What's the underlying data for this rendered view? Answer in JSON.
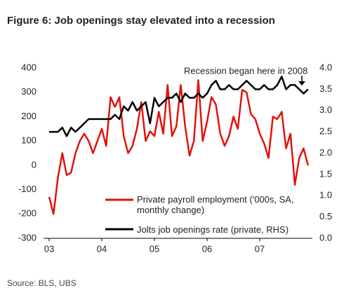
{
  "chart_data": {
    "type": "line",
    "title": "Figure 6: Job openings stay elevated into a recession",
    "source": "Source: BLS, UBS",
    "annotation": "Recession began here in 2008",
    "categories": [
      "03",
      null,
      null,
      null,
      null,
      null,
      null,
      null,
      null,
      null,
      null,
      null,
      "04",
      null,
      null,
      null,
      null,
      null,
      null,
      null,
      null,
      null,
      null,
      null,
      "05",
      null,
      null,
      null,
      null,
      null,
      null,
      null,
      null,
      null,
      null,
      null,
      "06",
      null,
      null,
      null,
      null,
      null,
      null,
      null,
      null,
      null,
      null,
      null,
      "07",
      null,
      null,
      null,
      null,
      null,
      null,
      null,
      null,
      null,
      null,
      null
    ],
    "series": [
      {
        "name": "Private payroll employment ('000s, SA, monthly change)",
        "color": "#e3120b",
        "axis": "y",
        "values": [
          -130,
          -200,
          -50,
          50,
          -40,
          -30,
          50,
          100,
          130,
          100,
          50,
          100,
          150,
          80,
          280,
          240,
          280,
          120,
          50,
          80,
          150,
          260,
          100,
          140,
          120,
          220,
          130,
          330,
          120,
          160,
          330,
          160,
          40,
          100,
          350,
          100,
          180,
          280,
          250,
          130,
          80,
          120,
          200,
          150,
          310,
          300,
          210,
          190,
          130,
          90,
          30,
          200,
          190,
          220,
          70,
          130,
          -80,
          30,
          70,
          0
        ]
      },
      {
        "name": "Jolts job openings rate (private, RHS)",
        "color": "#000000",
        "axis": "y2",
        "values": [
          2.5,
          2.5,
          2.5,
          2.6,
          2.4,
          2.6,
          2.5,
          2.6,
          2.7,
          2.8,
          2.8,
          2.8,
          2.8,
          2.8,
          2.8,
          2.9,
          2.8,
          3.1,
          3.0,
          3.2,
          3.0,
          3.1,
          3.2,
          2.7,
          3.3,
          3.1,
          3.2,
          3.3,
          3.3,
          3.4,
          3.2,
          3.4,
          3.3,
          3.3,
          3.4,
          3.3,
          3.4,
          3.6,
          3.7,
          3.5,
          3.5,
          3.6,
          3.5,
          3.5,
          3.6,
          3.7,
          3.6,
          3.5,
          3.5,
          3.6,
          3.5,
          3.5,
          3.6,
          3.8,
          3.5,
          3.6,
          3.6,
          3.5,
          3.4,
          3.5
        ]
      }
    ],
    "ylim": [
      -300,
      400
    ],
    "yticks": [
      -300,
      -200,
      -100,
      0,
      100,
      200,
      300,
      400
    ],
    "y2lim": [
      0,
      4
    ],
    "y2ticks": [
      {
        "value": 0,
        "label": "0.0"
      },
      0.5,
      {
        "value": 1,
        "label": "1.0"
      },
      1.5,
      {
        "value": 2,
        "label": "2.0"
      },
      2.5,
      {
        "value": 3,
        "label": "3.0"
      },
      3.5,
      {
        "value": 4,
        "label": "4.0"
      }
    ],
    "grid": false
  }
}
